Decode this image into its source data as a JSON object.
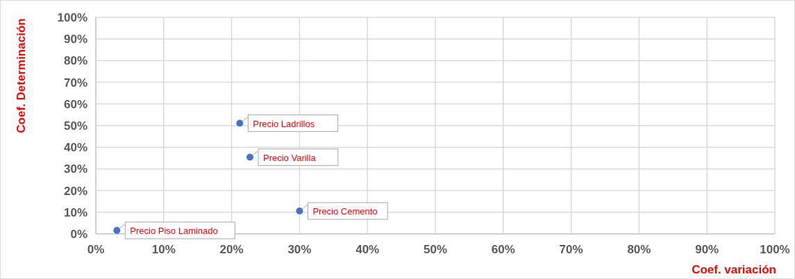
{
  "chart_data": {
    "type": "scatter",
    "xlabel": "Coef. variación",
    "ylabel": "Coef. Determinación",
    "x": [
      3.1,
      21.2,
      22.7,
      30.0
    ],
    "series": [
      {
        "color": "#4472c4",
        "values": [
          1.6,
          51.1,
          35.4,
          10.6
        ]
      }
    ],
    "xlim": [
      0,
      100
    ],
    "ylim": [
      0,
      100
    ],
    "xticks": [
      {
        "value": 0,
        "label": "0%"
      },
      {
        "value": 10,
        "label": "10%"
      },
      {
        "value": 20,
        "label": "20%"
      },
      {
        "value": 30,
        "label": "30%"
      },
      {
        "value": 40,
        "label": "40%"
      },
      {
        "value": 50,
        "label": "50%"
      },
      {
        "value": 60,
        "label": "60%"
      },
      {
        "value": 70,
        "label": "70%"
      },
      {
        "value": 80,
        "label": "80%"
      },
      {
        "value": 90,
        "label": "90%"
      },
      {
        "value": 100,
        "label": "100%"
      }
    ],
    "yticks": [
      {
        "value": 0,
        "label": "0%"
      },
      {
        "value": 10,
        "label": "10%"
      },
      {
        "value": 20,
        "label": "20%"
      },
      {
        "value": 30,
        "label": "30%"
      },
      {
        "value": 40,
        "label": "40%"
      },
      {
        "value": 50,
        "label": "50%"
      },
      {
        "value": 60,
        "label": "60%"
      },
      {
        "value": 70,
        "label": "70%"
      },
      {
        "value": 80,
        "label": "80%"
      },
      {
        "value": 90,
        "label": "90%"
      },
      {
        "value": 100,
        "label": "100%"
      }
    ],
    "grid": true,
    "legend": false,
    "marker": "circle",
    "annotations": [
      {
        "text": "Precio Piso Laminado",
        "x": 3.1,
        "y": 1.6
      },
      {
        "text": "Precio Ladrillos",
        "x": 21.2,
        "y": 51.1
      },
      {
        "text": "Precio Varilla",
        "x": 22.7,
        "y": 35.4
      },
      {
        "text": "Precio Cemento",
        "x": 30.0,
        "y": 10.6
      }
    ]
  }
}
